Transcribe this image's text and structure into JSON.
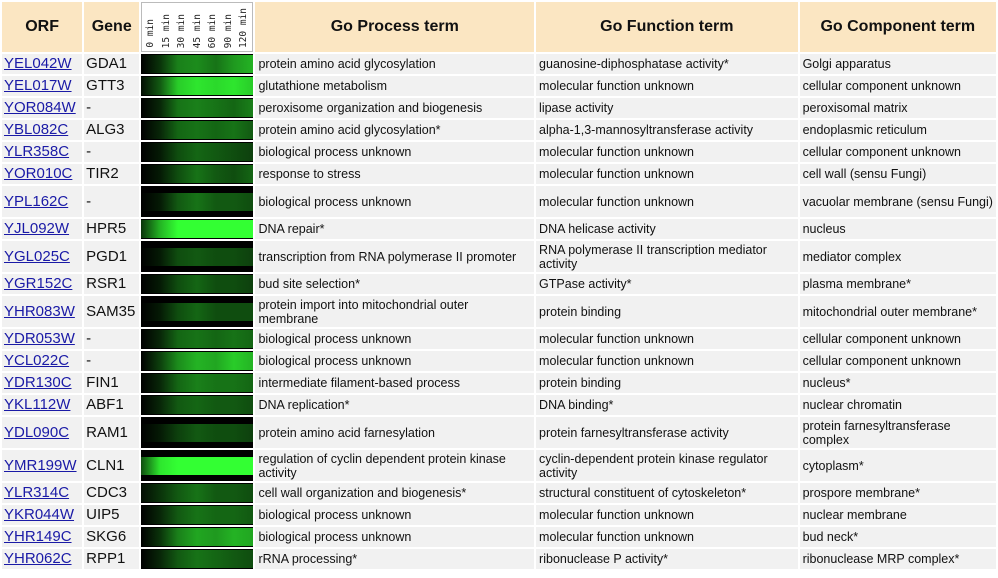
{
  "headers": {
    "orf": "ORF",
    "gene": "Gene",
    "process": "Go Process term",
    "function": "Go Function term",
    "component": "Go Component term",
    "timepoints": [
      "0 min",
      "15 min",
      "30 min",
      "45 min",
      "60 min",
      "90 min",
      "120 min"
    ]
  },
  "rows": [
    {
      "orf": "YEL042W",
      "gene": "GDA1",
      "process": "protein amino acid glycosylation",
      "function": "guanosine-diphosphatase activity*",
      "component": "Golgi apparatus",
      "heat": [
        0.0,
        0.2,
        0.5,
        0.55,
        0.45,
        0.6,
        0.7
      ]
    },
    {
      "orf": "YEL017W",
      "gene": "GTT3",
      "process": "glutathione metabolism",
      "function": "molecular function unknown",
      "component": "cellular component unknown",
      "heat": [
        0.05,
        0.35,
        0.8,
        0.9,
        0.85,
        0.9,
        0.8
      ]
    },
    {
      "orf": "YOR084W",
      "gene": "-",
      "process": "peroxisome organization and biogenesis",
      "function": "lipase activity",
      "component": "peroxisomal matrix",
      "heat": [
        0.0,
        0.15,
        0.45,
        0.5,
        0.45,
        0.4,
        0.5
      ]
    },
    {
      "orf": "YBL082C",
      "gene": "ALG3",
      "process": "protein amino acid glycosylation*",
      "function": "alpha-1,3-mannosyltransferase activity",
      "component": "endoplasmic reticulum",
      "heat": [
        0.0,
        0.15,
        0.4,
        0.45,
        0.4,
        0.45,
        0.35
      ]
    },
    {
      "orf": "YLR358C",
      "gene": "-",
      "process": "biological process unknown",
      "function": "molecular function unknown",
      "component": "cellular component unknown",
      "heat": [
        0.0,
        0.1,
        0.3,
        0.4,
        0.35,
        0.3,
        0.25
      ]
    },
    {
      "orf": "YOR010C",
      "gene": "TIR2",
      "process": "response to stress",
      "function": "molecular function unknown",
      "component": "cell wall (sensu Fungi)",
      "heat": [
        0.0,
        0.1,
        0.3,
        0.45,
        0.35,
        0.3,
        0.4
      ]
    },
    {
      "orf": "YPL162C",
      "gene": "-",
      "process": "biological process unknown",
      "function": "molecular function unknown",
      "component": "vacuolar membrane (sensu Fungi)",
      "heat": [
        0.0,
        0.1,
        0.35,
        0.45,
        0.35,
        0.35,
        0.3
      ]
    },
    {
      "orf": "YJL092W",
      "gene": "HPR5",
      "process": "DNA repair*",
      "function": "DNA helicase activity",
      "component": "nucleus",
      "heat": [
        0.2,
        0.7,
        1.0,
        1.0,
        1.0,
        1.0,
        1.0
      ]
    },
    {
      "orf": "YGL025C",
      "gene": "PGD1",
      "process": "transcription from RNA polymerase II promoter",
      "function": "RNA polymerase II transcription mediator activity",
      "component": "mediator complex",
      "heat": [
        0.0,
        0.1,
        0.3,
        0.35,
        0.3,
        0.3,
        0.25
      ]
    },
    {
      "orf": "YGR152C",
      "gene": "RSR1",
      "process": "bud site selection*",
      "function": "GTPase activity*",
      "component": "plasma membrane*",
      "heat": [
        0.0,
        0.1,
        0.3,
        0.4,
        0.3,
        0.3,
        0.25
      ]
    },
    {
      "orf": "YHR083W",
      "gene": "SAM35",
      "process": "protein import into mitochondrial outer membrane",
      "function": "protein binding",
      "component": "mitochondrial outer membrane*",
      "heat": [
        0.0,
        0.1,
        0.3,
        0.4,
        0.3,
        0.3,
        0.3
      ]
    },
    {
      "orf": "YDR053W",
      "gene": "-",
      "process": "biological process unknown",
      "function": "molecular function unknown",
      "component": "cellular component unknown",
      "heat": [
        0.0,
        0.15,
        0.4,
        0.45,
        0.4,
        0.45,
        0.4
      ]
    },
    {
      "orf": "YCL022C",
      "gene": "-",
      "process": "biological process unknown",
      "function": "molecular function unknown",
      "component": "cellular component unknown",
      "heat": [
        0.0,
        0.25,
        0.55,
        0.7,
        0.65,
        0.8,
        0.7
      ]
    },
    {
      "orf": "YDR130C",
      "gene": "FIN1",
      "process": "intermediate filament-based process",
      "function": "protein binding",
      "component": "nucleus*",
      "heat": [
        0.0,
        0.15,
        0.4,
        0.5,
        0.45,
        0.45,
        0.4
      ]
    },
    {
      "orf": "YKL112W",
      "gene": "ABF1",
      "process": "DNA replication*",
      "function": "DNA binding*",
      "component": "nuclear chromatin",
      "heat": [
        0.0,
        0.15,
        0.35,
        0.4,
        0.35,
        0.35,
        0.3
      ]
    },
    {
      "orf": "YDL090C",
      "gene": "RAM1",
      "process": "protein amino acid farnesylation",
      "function": "protein farnesyltransferase activity",
      "component": "protein farnesyltransferase complex",
      "heat": [
        0.0,
        0.1,
        0.25,
        0.35,
        0.3,
        0.3,
        0.25
      ]
    },
    {
      "orf": "YMR199W",
      "gene": "CLN1",
      "process": "regulation of cyclin dependent protein kinase activity",
      "function": "cyclin-dependent protein kinase regulator activity",
      "component": "cytoplasm*",
      "heat": [
        0.3,
        0.9,
        1.0,
        1.0,
        1.0,
        1.0,
        1.0
      ]
    },
    {
      "orf": "YLR314C",
      "gene": "CDC3",
      "process": "cell wall organization and biogenesis*",
      "function": "structural constituent of cytoskeleton*",
      "component": "prospore membrane*",
      "heat": [
        0.05,
        0.2,
        0.35,
        0.45,
        0.35,
        0.35,
        0.3
      ]
    },
    {
      "orf": "YKR044W",
      "gene": "UIP5",
      "process": "biological process unknown",
      "function": "molecular function unknown",
      "component": "nuclear membrane",
      "heat": [
        0.0,
        0.15,
        0.35,
        0.45,
        0.4,
        0.4,
        0.35
      ]
    },
    {
      "orf": "YHR149C",
      "gene": "SKG6",
      "process": "biological process unknown",
      "function": "molecular function unknown",
      "component": "bud neck*",
      "heat": [
        0.0,
        0.2,
        0.5,
        0.65,
        0.6,
        0.7,
        0.65
      ]
    },
    {
      "orf": "YHR062C",
      "gene": "RPP1",
      "process": "rRNA processing*",
      "function": "ribonuclease P activity*",
      "component": "ribonuclease MRP complex*",
      "heat": [
        0.0,
        0.15,
        0.35,
        0.45,
        0.4,
        0.35,
        0.3
      ]
    }
  ],
  "colors": {
    "header_bg": "#fbe6c2",
    "cell_bg": "#f1f1f1",
    "link": "#1a1aa6",
    "heat_high": "#33ff33",
    "heat_low": "#000000"
  }
}
